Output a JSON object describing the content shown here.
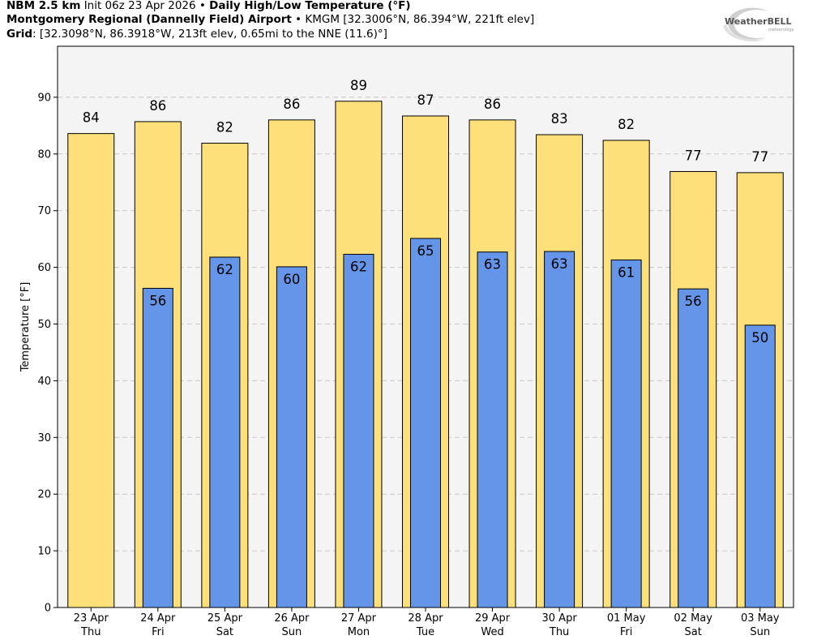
{
  "header": {
    "line1_bold_a": "NBM 2.5 km",
    "line1_init": "Init 06z 23 Apr 2026",
    "bullet": "•",
    "line1_bold_b": "Daily High/Low Temperature (°F)",
    "line2_bold": "Montgomery Regional (Dannelly Field) Airport",
    "line2_rest": "KMGM [32.3006°N, 86.394°W, 221ft elev]",
    "line3_bold": "Grid",
    "line3_rest": ": [32.3098°N, 86.3918°W, 213ft elev, 0.65mi to the NNE (11.6)°]"
  },
  "logo": {
    "text": "WeatherBELL"
  },
  "colors": {
    "high": "#fde07a",
    "low": "#6595e8",
    "plot_bg": "#f4f4f4",
    "grid": "#c8c8c8"
  },
  "chart_data": {
    "type": "bar",
    "title": "Daily High/Low Temperature (°F)",
    "xlabel": "",
    "ylabel": "Temperature [°F]",
    "ylim": [
      0,
      99
    ],
    "yticks": [
      0,
      10,
      20,
      30,
      40,
      50,
      60,
      70,
      80,
      90
    ],
    "grid": true,
    "categories": [
      {
        "date": "23 Apr",
        "day": "Thu"
      },
      {
        "date": "24 Apr",
        "day": "Fri"
      },
      {
        "date": "25 Apr",
        "day": "Sat"
      },
      {
        "date": "26 Apr",
        "day": "Sun"
      },
      {
        "date": "27 Apr",
        "day": "Mon"
      },
      {
        "date": "28 Apr",
        "day": "Tue"
      },
      {
        "date": "29 Apr",
        "day": "Wed"
      },
      {
        "date": "30 Apr",
        "day": "Thu"
      },
      {
        "date": "01 May",
        "day": "Fri"
      },
      {
        "date": "02 May",
        "day": "Sat"
      },
      {
        "date": "03 May",
        "day": "Sun"
      }
    ],
    "series": [
      {
        "name": "High",
        "values": [
          83.6,
          85.7,
          81.9,
          86.0,
          89.3,
          86.7,
          86.0,
          83.4,
          82.4,
          76.9,
          76.7
        ],
        "labels": [
          "84",
          "86",
          "82",
          "86",
          "89",
          "87",
          "86",
          "83",
          "82",
          "77",
          "77"
        ]
      },
      {
        "name": "Low",
        "values": [
          null,
          56.3,
          61.8,
          60.1,
          62.3,
          65.1,
          62.7,
          62.8,
          61.3,
          56.2,
          49.8
        ],
        "labels": [
          "",
          "56",
          "62",
          "60",
          "62",
          "65",
          "63",
          "63",
          "61",
          "56",
          "50"
        ]
      }
    ]
  }
}
